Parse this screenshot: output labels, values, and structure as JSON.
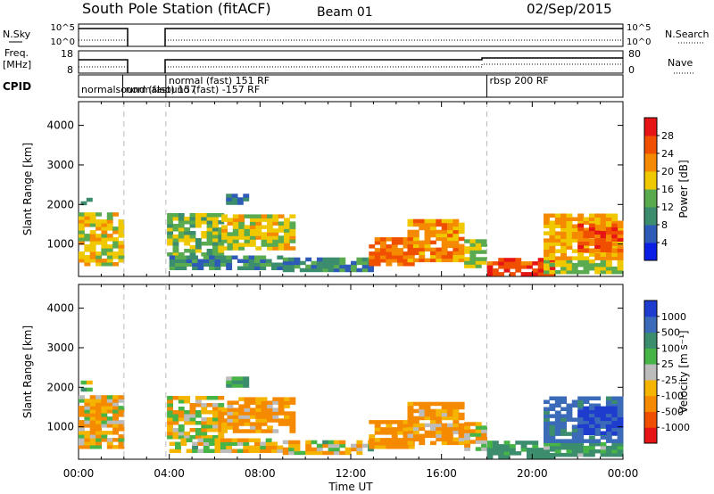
{
  "header": {
    "title": "South Pole Station (fitACF)",
    "beam": "Beam 01",
    "date": "02/Sep/2015"
  },
  "top_panels": {
    "nsky_label": "N.Sky",
    "nsky_ticks": [
      "10^5",
      "10^0"
    ],
    "nsearch_label": "N.Search",
    "nsearch_ticks": [
      "10^5",
      "10^0"
    ],
    "freq_label": "Freq.",
    "freq_unit": "[MHz]",
    "freq_ticks": [
      "18",
      "8"
    ],
    "nave_label": "Nave",
    "nave_ticks": [
      "80",
      "0"
    ],
    "cpid_label": "CPID",
    "cpid_segments": [
      {
        "start_h": 0.0,
        "label": "normalsound (fast) 157",
        "row": 1
      },
      {
        "start_h": 1.95,
        "label": "normalsound (fast) -157 RF",
        "row": 1
      },
      {
        "start_h": 3.85,
        "label": "normal (fast) 151 RF",
        "row": 0
      },
      {
        "start_h": 18.0,
        "label": "rbsp 200 RF",
        "row": 0
      }
    ]
  },
  "chart_data": [
    {
      "type": "heatmap",
      "name": "power",
      "ylabel": "Slant Range [km]",
      "xlabel": "",
      "x_range_h": [
        0,
        24
      ],
      "ylim": [
        180,
        4600
      ],
      "y_ticks": [
        1000,
        2000,
        3000,
        4000
      ],
      "colorbar": {
        "label": "Power [dB]",
        "ticks": [
          "4",
          "8",
          "12",
          "16",
          "20",
          "24",
          "28"
        ],
        "colors": [
          "#0a1ee6",
          "#2e5ab8",
          "#3c8c6e",
          "#5aaa50",
          "#f0c800",
          "#f58a00",
          "#f04f00",
          "#e61414"
        ]
      },
      "regions": [
        {
          "t0": 0.0,
          "t1": 2.0,
          "r0": 450,
          "r1": 1750,
          "v": 18
        },
        {
          "t0": 0.1,
          "t1": 0.5,
          "r0": 1900,
          "r1": 2100,
          "v": 8
        },
        {
          "t0": 3.9,
          "t1": 6.2,
          "r0": 700,
          "r1": 1700,
          "v": 14
        },
        {
          "t0": 6.3,
          "t1": 9.5,
          "r0": 850,
          "r1": 1750,
          "v": 18
        },
        {
          "t0": 6.5,
          "t1": 7.3,
          "r0": 2000,
          "r1": 2200,
          "v": 8
        },
        {
          "t0": 4.0,
          "t1": 9.0,
          "r0": 350,
          "r1": 650,
          "v": 10
        },
        {
          "t0": 9.0,
          "t1": 13.0,
          "r0": 300,
          "r1": 650,
          "v": 10
        },
        {
          "t0": 12.8,
          "t1": 14.8,
          "r0": 450,
          "r1": 1100,
          "v": 24
        },
        {
          "t0": 14.5,
          "t1": 17.0,
          "r0": 550,
          "r1": 1600,
          "v": 22
        },
        {
          "t0": 17.0,
          "t1": 18.0,
          "r0": 400,
          "r1": 1100,
          "v": 16
        },
        {
          "t0": 18.0,
          "t1": 21.0,
          "r0": 200,
          "r1": 600,
          "v": 27
        },
        {
          "t0": 20.5,
          "t1": 24.0,
          "r0": 250,
          "r1": 550,
          "v": 16
        },
        {
          "t0": 20.5,
          "t1": 24.0,
          "r0": 600,
          "r1": 1750,
          "v": 20
        },
        {
          "t0": 22.0,
          "t1": 24.0,
          "r0": 800,
          "r1": 1500,
          "v": 26
        }
      ]
    },
    {
      "type": "heatmap",
      "name": "velocity",
      "ylabel": "Slant Range [km]",
      "xlabel": "Time UT",
      "x_range_h": [
        0,
        24
      ],
      "x_ticks": [
        "00:00",
        "04:00",
        "08:00",
        "12:00",
        "16:00",
        "20:00",
        "00:00"
      ],
      "ylim": [
        180,
        4600
      ],
      "y_ticks": [
        1000,
        2000,
        3000,
        4000
      ],
      "colorbar": {
        "label": "Velocity [m s⁻¹]",
        "ticks": [
          "-1000",
          "-500",
          "-100",
          "-25",
          "25",
          "100",
          "500",
          "1000"
        ],
        "colors": [
          "#e61414",
          "#f04f00",
          "#f58a00",
          "#f5b400",
          "#bcbcbc",
          "#46b446",
          "#3c8c6e",
          "#3a6ab8",
          "#1e3ccd"
        ]
      },
      "regions": [
        {
          "t0": 0.0,
          "t1": 2.0,
          "r0": 450,
          "r1": 1750,
          "v": -80
        },
        {
          "t0": 0.1,
          "t1": 0.5,
          "r0": 1900,
          "r1": 2100,
          "v": 0
        },
        {
          "t0": 3.9,
          "t1": 6.2,
          "r0": 700,
          "r1": 1700,
          "v": -50
        },
        {
          "t0": 6.3,
          "t1": 9.5,
          "r0": 850,
          "r1": 1750,
          "v": -150
        },
        {
          "t0": 6.5,
          "t1": 7.3,
          "r0": 2000,
          "r1": 2200,
          "v": 150
        },
        {
          "t0": 4.0,
          "t1": 9.0,
          "r0": 350,
          "r1": 650,
          "v": -40
        },
        {
          "t0": 9.0,
          "t1": 13.0,
          "r0": 300,
          "r1": 650,
          "v": -40
        },
        {
          "t0": 12.8,
          "t1": 14.8,
          "r0": 450,
          "r1": 1100,
          "v": -200
        },
        {
          "t0": 14.5,
          "t1": 17.0,
          "r0": 550,
          "r1": 1600,
          "v": -150
        },
        {
          "t0": 17.0,
          "t1": 18.0,
          "r0": 400,
          "r1": 1100,
          "v": -60
        },
        {
          "t0": 18.0,
          "t1": 21.0,
          "r0": 200,
          "r1": 600,
          "v": 200
        },
        {
          "t0": 20.5,
          "t1": 24.0,
          "r0": 250,
          "r1": 550,
          "v": 150
        },
        {
          "t0": 20.5,
          "t1": 24.0,
          "r0": 600,
          "r1": 1750,
          "v": 600
        },
        {
          "t0": 22.0,
          "t1": 24.0,
          "r0": 800,
          "r1": 1500,
          "v": 1000
        }
      ]
    }
  ]
}
